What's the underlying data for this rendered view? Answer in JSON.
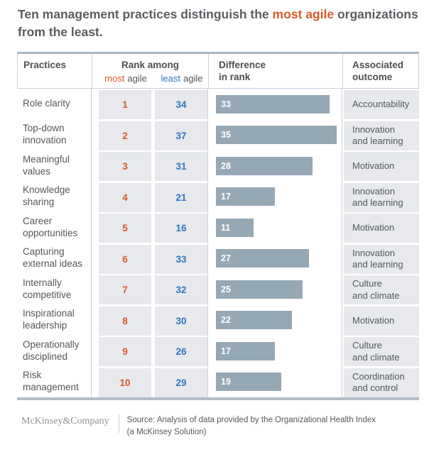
{
  "colors": {
    "accent_orange": "#D9582B",
    "accent_blue": "#3077BE",
    "bar_fill": "#96A8B4",
    "cell_background": "#E7E9EC"
  },
  "title": {
    "pre": "Ten management practices distinguish the ",
    "highlight": "most agile",
    "post": " organizations from the least."
  },
  "table": {
    "headers": {
      "practices": "Practices",
      "rank_among": "Rank among",
      "most_word": "most",
      "least_word": "least",
      "agile_word": "agile",
      "difference": "Difference\nin rank",
      "outcome": "Associated\noutcome"
    },
    "rows": [
      {
        "practice": "Role clarity",
        "most_agile_rank": "1",
        "least_agile_rank": "34",
        "difference": 33,
        "outcome": "Accountability"
      },
      {
        "practice": "Top-down\ninnovation",
        "most_agile_rank": "2",
        "least_agile_rank": "37",
        "difference": 35,
        "outcome": "Innovation\nand learning"
      },
      {
        "practice": "Meaningful\nvalues",
        "most_agile_rank": "3",
        "least_agile_rank": "31",
        "difference": 28,
        "outcome": "Motivation"
      },
      {
        "practice": "Knowledge\nsharing",
        "most_agile_rank": "4",
        "least_agile_rank": "21",
        "difference": 17,
        "outcome": "Innovation\nand learning"
      },
      {
        "practice": "Career\nopportunities",
        "most_agile_rank": "5",
        "least_agile_rank": "16",
        "difference": 11,
        "outcome": "Motivation"
      },
      {
        "practice": "Capturing\nexternal ideas",
        "most_agile_rank": "6",
        "least_agile_rank": "33",
        "difference": 27,
        "outcome": "Innovation\nand learning"
      },
      {
        "practice": "Internally\ncompetitive",
        "most_agile_rank": "7",
        "least_agile_rank": "32",
        "difference": 25,
        "outcome": "Culture\nand climate"
      },
      {
        "practice": "Inspirational\nleadership",
        "most_agile_rank": "8",
        "least_agile_rank": "30",
        "difference": 22,
        "outcome": "Motivation"
      },
      {
        "practice": "Operationally\ndisciplined",
        "most_agile_rank": "9",
        "least_agile_rank": "26",
        "difference": 17,
        "outcome": "Culture\nand climate"
      },
      {
        "practice": "Risk\nmanagement",
        "most_agile_rank": "10",
        "least_agile_rank": "29",
        "difference": 19,
        "outcome": "Coordination\nand control"
      }
    ]
  },
  "footer": {
    "logo": "McKinsey&Company",
    "source": "Source: Analysis of data provided by the Organizational Health Index\n(a McKinsey Solution)"
  },
  "chart_data": {
    "type": "bar",
    "title": "Ten management practices distinguish the most agile organizations from the least.",
    "categories": [
      "Role clarity",
      "Top-down innovation",
      "Meaningful values",
      "Knowledge sharing",
      "Career opportunities",
      "Capturing external ideas",
      "Internally competitive",
      "Inspirational leadership",
      "Operationally disciplined",
      "Risk management"
    ],
    "series": [
      {
        "name": "Rank among most agile",
        "values": [
          1,
          2,
          3,
          4,
          5,
          6,
          7,
          8,
          9,
          10
        ]
      },
      {
        "name": "Rank among least agile",
        "values": [
          34,
          37,
          31,
          21,
          16,
          33,
          32,
          30,
          26,
          29
        ]
      },
      {
        "name": "Difference in rank",
        "values": [
          33,
          35,
          28,
          17,
          11,
          27,
          25,
          22,
          17,
          19
        ]
      }
    ],
    "annotations": [
      "Accountability",
      "Innovation and learning",
      "Motivation",
      "Innovation and learning",
      "Motivation",
      "Innovation and learning",
      "Culture and climate",
      "Motivation",
      "Culture and climate",
      "Coordination and control"
    ],
    "xlabel": "Difference in rank",
    "ylabel": "Practices",
    "xlim": [
      0,
      35
    ],
    "grid": false,
    "legend_position": "none",
    "bar_orientation": "horizontal",
    "bar_labels_inside": true
  }
}
